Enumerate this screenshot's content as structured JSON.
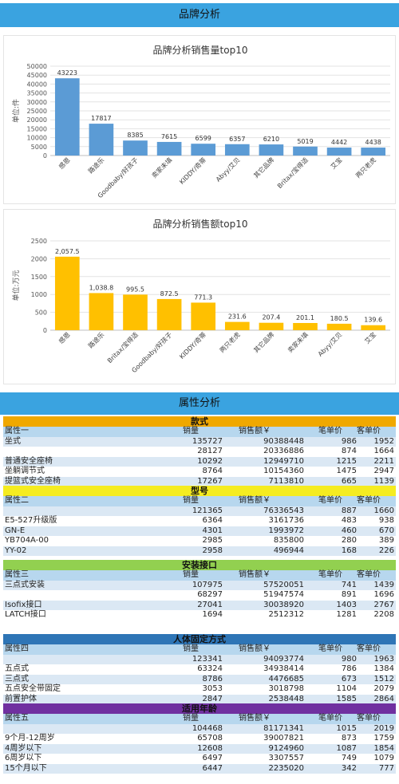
{
  "banner_brand": "品牌分析",
  "banner_attr": "属性分析",
  "chart_data": [
    {
      "type": "bar",
      "title": "品牌分析销售量top10",
      "ylabel": "单位:件",
      "xlabel": "",
      "ylim": [
        0,
        50000
      ],
      "yticks": [
        "0",
        "5000",
        "10000",
        "15000",
        "20000",
        "25000",
        "30000",
        "35000",
        "40000",
        "45000",
        "50000"
      ],
      "categories": [
        "感恩",
        "路途乐",
        "Goodbaby/好孩子",
        "卖家未填",
        "KIDDY/奇蒂",
        "Abyy/艾贝",
        "其它品牌",
        "Britax/宝得适",
        "艾宝",
        "两只老虎"
      ],
      "values": [
        43223,
        17817,
        8385,
        7615,
        6599,
        6357,
        6210,
        5019,
        4442,
        4438
      ],
      "labels": [
        "43223",
        "17817",
        "8385",
        "7615",
        "6599",
        "6357",
        "6210",
        "5019",
        "4442",
        "4438"
      ],
      "color": "#5b9bd5",
      "grid": true
    },
    {
      "type": "bar",
      "title": "品牌分析销售额top10",
      "ylabel": "单位:万元",
      "xlabel": "",
      "ylim": [
        0,
        2500
      ],
      "yticks": [
        "0",
        "500",
        "1000",
        "1500",
        "2000",
        "2500"
      ],
      "categories": [
        "感恩",
        "路途乐",
        "Britax/宝得适",
        "Goodbaby/好孩子",
        "KIDDY/奇蒂",
        "两只老虎",
        "其它品牌",
        "卖家未填",
        "Abyy/艾贝",
        "艾宝"
      ],
      "values": [
        2057.5,
        1038.8,
        995.5,
        872.5,
        771.3,
        231.6,
        207.4,
        201.1,
        180.5,
        139.6
      ],
      "labels": [
        "2,057.5",
        "1,038.8",
        "995.5",
        "872.5",
        "771.3",
        "231.6",
        "207.4",
        "201.1",
        "180.5",
        "139.6"
      ],
      "color": "#ffc000",
      "grid": true
    }
  ],
  "sections": [
    {
      "title": "款式",
      "color": "#f0a800",
      "header": [
        "属性一",
        "销量",
        "销售额￥",
        "笔单价",
        "客单价"
      ],
      "rows": [
        [
          "坐式",
          "135727",
          "90388448",
          "986",
          "1952"
        ],
        [
          "",
          "28127",
          "20336886",
          "874",
          "1664"
        ],
        [
          "普通安全座椅",
          "10292",
          "12949710",
          "1215",
          "2211"
        ],
        [
          "坐躺调节式",
          "8764",
          "10154360",
          "1475",
          "2947"
        ],
        [
          "提篮式安全座椅",
          "17267",
          "7113810",
          "665",
          "1139"
        ]
      ]
    },
    {
      "title": "型号",
      "color": "#f5ec20",
      "header": [
        "属性二",
        "销量",
        "销售额￥",
        "笔单价",
        "客单价"
      ],
      "rows": [
        [
          "",
          "121365",
          "76336543",
          "887",
          "1660"
        ],
        [
          "E5-527升级版",
          "6364",
          "3161736",
          "483",
          "938"
        ],
        [
          "GN-E",
          "4301",
          "1993972",
          "460",
          "670"
        ],
        [
          "YB704A-00",
          "2985",
          "835800",
          "280",
          "389"
        ],
        [
          "YY-02",
          "2958",
          "496944",
          "168",
          "226"
        ]
      ]
    },
    {
      "title": "安装接口",
      "color": "#92d050",
      "header": [
        "属性三",
        "销量",
        "销售额￥",
        "笔单价",
        "客单价"
      ],
      "rows": [
        [
          "三点式安装",
          "107975",
          "57520051",
          "741",
          "1439"
        ],
        [
          "",
          "68297",
          "51947574",
          "891",
          "1696"
        ],
        [
          "Isofix接口",
          "27041",
          "30038920",
          "1403",
          "2767"
        ],
        [
          "LATCH接口",
          "1694",
          "2512312",
          "1281",
          "2208"
        ]
      ]
    },
    {
      "title": "人体固定方式",
      "color": "#2e75b6",
      "header": [
        "属性四",
        "销量",
        "销售额￥",
        "笔单价",
        "客单价"
      ],
      "rows": [
        [
          "",
          "123341",
          "94093774",
          "980",
          "1963"
        ],
        [
          "五点式",
          "63324",
          "34938414",
          "786",
          "1384"
        ],
        [
          "三点式",
          "8786",
          "4476685",
          "673",
          "1512"
        ],
        [
          "五点安全带固定",
          "3053",
          "3018798",
          "1104",
          "2079"
        ],
        [
          "前置护体",
          "2847",
          "2538448",
          "1585",
          "2864"
        ]
      ]
    },
    {
      "title": "适用年龄",
      "color": "#7030a0",
      "header": [
        "属性五",
        "销量",
        "销售额￥",
        "笔单价",
        "客单价"
      ],
      "rows": [
        [
          "",
          "104468",
          "81171341",
          "1015",
          "2019"
        ],
        [
          "9个月-12周岁",
          "65708",
          "39007821",
          "873",
          "1759"
        ],
        [
          "4周岁以下",
          "12608",
          "9124960",
          "1087",
          "1854"
        ],
        [
          "6周岁以下",
          "6497",
          "3307557",
          "749",
          "1079"
        ],
        [
          "15个月以下",
          "6447",
          "2235020",
          "342",
          "777"
        ]
      ]
    }
  ]
}
